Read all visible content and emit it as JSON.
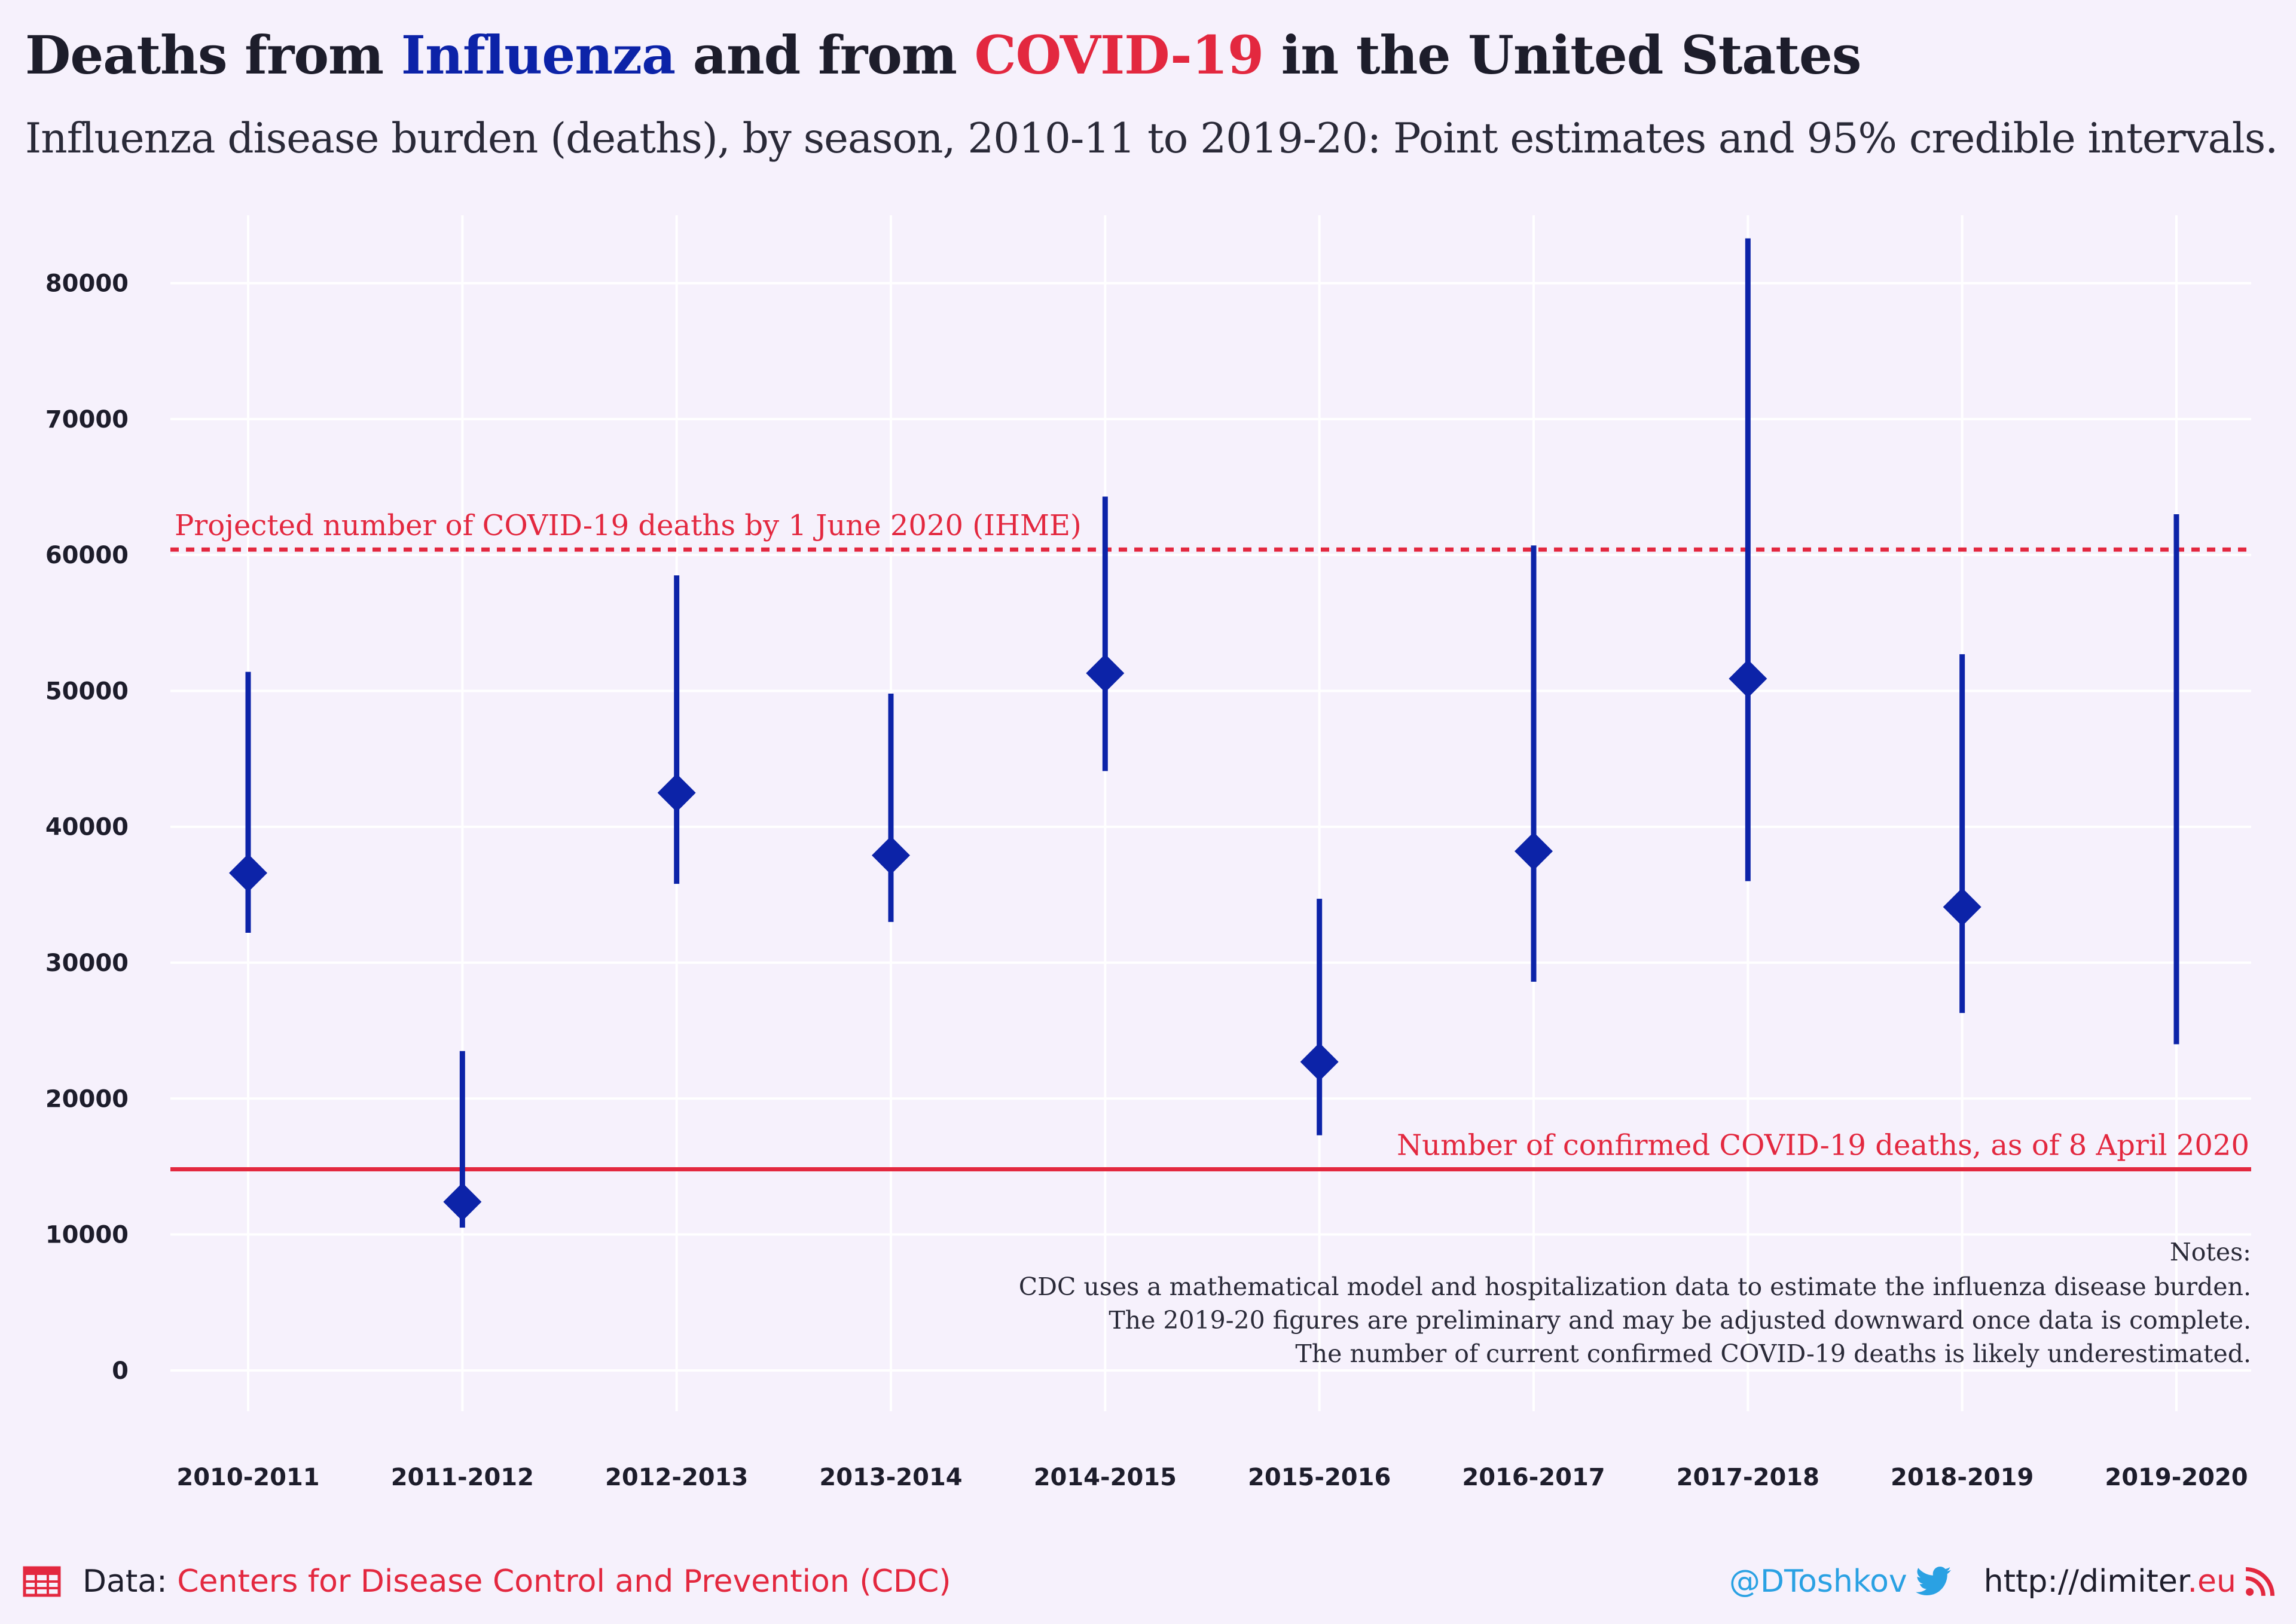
{
  "title": {
    "part1": "Deaths from ",
    "part2": "Influenza",
    "part3": " and from ",
    "part4": "COVID-19",
    "part5": " in the United States"
  },
  "subtitle": "Influenza disease burden (deaths), by season, 2010-11 to 2019-20: Point estimates and 95% credible intervals.",
  "colors": {
    "influenza": "#0c23a8",
    "covid": "#e3283f",
    "twitter": "#2aa1e3",
    "background": "#f6f1fc"
  },
  "chart_data": {
    "type": "point-range",
    "categories": [
      "2010-2011",
      "2011-2012",
      "2012-2013",
      "2013-2014",
      "2014-2015",
      "2015-2016",
      "2016-2017",
      "2017-2018",
      "2018-2019",
      "2019-2020"
    ],
    "estimates": [
      36600,
      12400,
      42500,
      37900,
      51300,
      22700,
      38200,
      50900,
      34100,
      null
    ],
    "lower": [
      32200,
      10500,
      35800,
      33000,
      44100,
      17300,
      28600,
      36000,
      26300,
      24000
    ],
    "upper": [
      51400,
      23500,
      58500,
      49800,
      64300,
      34700,
      60700,
      83300,
      52700,
      63000
    ],
    "ylim": [
      -3000,
      85000
    ],
    "yticks": [
      0,
      10000,
      20000,
      30000,
      40000,
      50000,
      60000,
      70000,
      80000
    ],
    "grid": true,
    "reference_lines": [
      {
        "value": 60400,
        "style": "dotted",
        "label": "Projected number of COVID-19 deaths by 1 June 2020 (IHME)",
        "label_align": "left"
      },
      {
        "value": 14800,
        "style": "solid",
        "label": "Number of confirmed COVID-19 deaths, as of 8 April 2020",
        "label_align": "right"
      }
    ],
    "notes": [
      "Notes:",
      "CDC uses a mathematical model and hospitalization data to estimate the influenza disease burden.",
      "The 2019-20 figures are preliminary and may be adjusted downward once data is complete.",
      "The number of current confirmed COVID-19 deaths is likely underestimated."
    ]
  },
  "footer": {
    "data_label": "Data:",
    "source": "Centers for Disease Control and Prevention (CDC)",
    "handle": "@DToshkov",
    "site_main": "http://dimiter",
    "site_tld": ".eu",
    "icons": [
      "table-icon",
      "twitter-icon",
      "rss-icon"
    ]
  }
}
